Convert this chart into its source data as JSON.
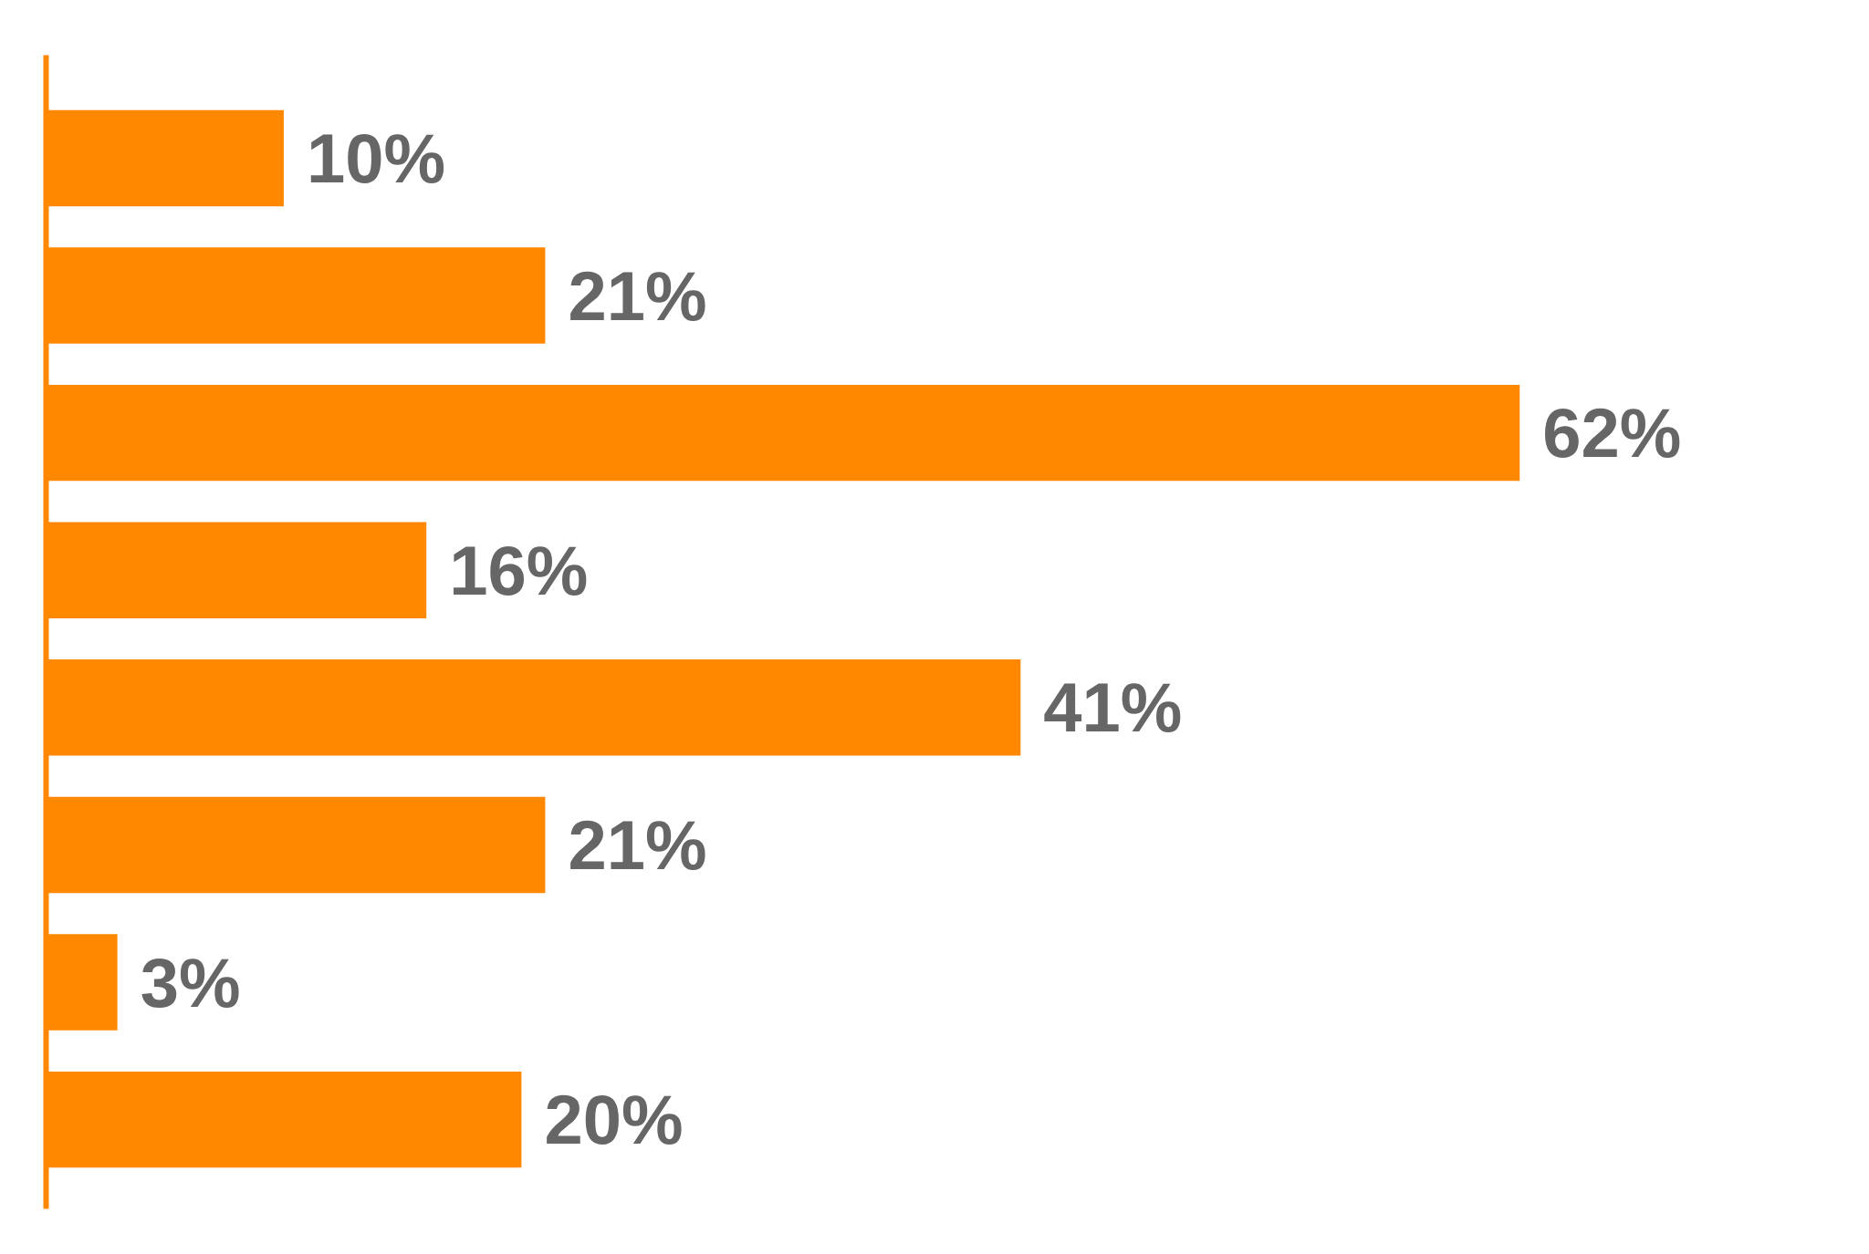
{
  "chart_data": {
    "type": "bar",
    "orientation": "horizontal",
    "categories": [
      null,
      null,
      null,
      null,
      null,
      null,
      null,
      null
    ],
    "values": [
      10,
      21,
      62,
      16,
      41,
      21,
      3,
      20
    ],
    "value_labels": [
      "10%",
      "21%",
      "62%",
      "16%",
      "41%",
      "21%",
      "3%",
      "20%"
    ],
    "color": "#ff8800",
    "grid": false
  }
}
